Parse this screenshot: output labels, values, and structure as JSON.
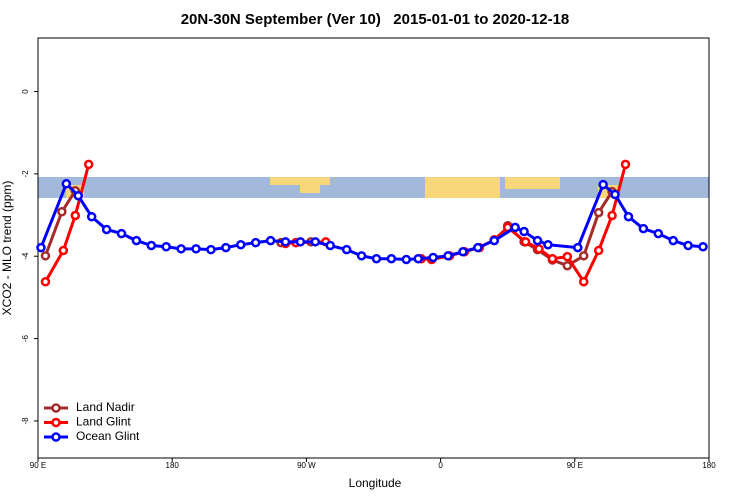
{
  "chart_data": {
    "type": "line",
    "title": "20N-30N September (Ver 10)   2015-01-01 to 2020-12-18",
    "x_label": "Longitude",
    "y_label": "XCO2 - MLO trend (ppm)",
    "xlim": [
      90,
      540
    ],
    "ylim": [
      -8.9,
      1.3
    ],
    "xticks": [
      {
        "value": 90,
        "label": "90 E"
      },
      180,
      {
        "value": 270,
        "label": "90 W"
      },
      {
        "value": 360,
        "label": "0"
      },
      {
        "value": 450,
        "label": "90 E"
      },
      {
        "value": 540,
        "label": "180"
      }
    ],
    "yticks": [
      -8,
      -6,
      -4,
      -2,
      0
    ],
    "legend": "bottom-left",
    "series": [
      {
        "name": "Land Nadir",
        "color": "#a52a2a",
        "x": [
          95,
          106,
          115,
          190,
          253,
          263,
          273,
          315,
          405,
          416,
          425,
          435,
          445,
          456,
          466,
          475
        ],
        "values": [
          -3.99,
          -2.92,
          -2.41,
          null,
          -3.67,
          -3.67,
          -3.65,
          null,
          -3.26,
          -3.65,
          -3.84,
          -4.09,
          -4.23,
          -3.99,
          -2.94,
          -2.43
        ]
      },
      {
        "name": "Land Glint",
        "color": "#ff0000",
        "x": [
          95,
          107,
          115,
          124,
          190,
          256,
          263,
          283,
          315,
          347,
          354,
          366,
          376,
          386,
          396,
          405,
          417,
          426,
          435,
          445,
          456,
          466,
          475,
          484
        ],
        "values": [
          -4.62,
          -3.86,
          -3.01,
          -1.77,
          null,
          -3.69,
          -3.67,
          -3.65,
          null,
          -4.06,
          -4.08,
          -3.99,
          -3.89,
          -3.79,
          -3.6,
          -3.3,
          -3.65,
          -3.82,
          -4.06,
          -4.01,
          -4.62,
          -3.86,
          -3.01,
          -1.77
        ]
      },
      {
        "name": "Ocean Glint",
        "color": "#0000ff",
        "x": [
          92,
          109,
          117,
          126,
          136,
          146,
          156,
          166,
          176,
          186,
          196,
          206,
          216,
          226,
          236,
          246,
          256,
          266,
          276,
          286,
          297,
          307,
          317,
          327,
          337,
          345,
          355,
          365,
          375,
          385,
          396,
          410,
          416,
          425,
          432,
          452,
          469,
          477,
          486,
          496,
          506,
          516,
          526,
          536
        ],
        "values": [
          -3.79,
          -2.24,
          -2.53,
          -3.04,
          -3.35,
          -3.45,
          -3.62,
          -3.74,
          -3.77,
          -3.82,
          -3.82,
          -3.84,
          -3.79,
          -3.72,
          -3.67,
          -3.62,
          -3.65,
          -3.65,
          -3.65,
          -3.74,
          -3.84,
          -3.99,
          -4.06,
          -4.06,
          -4.08,
          -4.06,
          -4.03,
          -3.99,
          -3.89,
          -3.79,
          -3.62,
          -3.3,
          -3.4,
          -3.62,
          -3.72,
          -3.79,
          -2.26,
          -2.5,
          -3.04,
          -3.33,
          -3.45,
          -3.62,
          -3.74,
          -3.77
        ]
      }
    ]
  }
}
